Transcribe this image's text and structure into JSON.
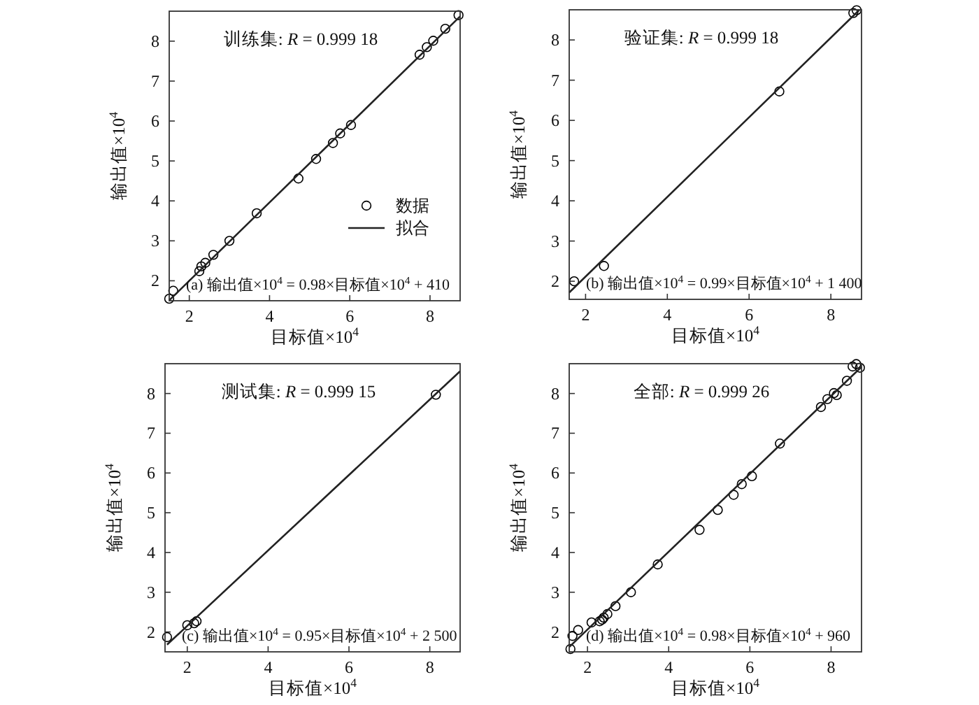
{
  "chart_data": [
    {
      "type": "scatter",
      "title": "训练集: *R* = 0.999 18",
      "xlabel": "目标值×10$^{4}$",
      "ylabel": "输出值×10$^{4}$",
      "annotations": [
        "(a) 输出值×10$^{4}$ = 0.98×目标值×10$^{4}$ + 410"
      ],
      "xlim": [
        1.5,
        8.75
      ],
      "ylim": [
        1.5,
        8.75
      ],
      "xticks": [
        2,
        4,
        6,
        8
      ],
      "yticks": [
        2,
        3,
        4,
        5,
        6,
        7,
        8
      ],
      "legend": "bottom right",
      "grid": false,
      "series": [
        {
          "name": "数据",
          "type": "scatter",
          "marker": "circle",
          "color": "#000000",
          "x": [
            1.5,
            1.6,
            2.25,
            2.3,
            2.4,
            2.6,
            3.0,
            3.68,
            4.72,
            5.16,
            5.58,
            5.76,
            6.03,
            7.74,
            7.92,
            8.08,
            8.38,
            8.71
          ],
          "values": [
            1.55,
            1.75,
            2.24,
            2.36,
            2.45,
            2.65,
            3.0,
            3.69,
            4.56,
            5.05,
            5.45,
            5.69,
            5.9,
            7.66,
            7.85,
            8.01,
            8.31,
            8.65
          ]
        },
        {
          "name": "拟合",
          "type": "line",
          "line_style": "solid",
          "color": "#222222",
          "x": [
            1.5,
            8.75
          ],
          "values": [
            1.51,
            8.62
          ]
        }
      ]
    },
    {
      "type": "scatter",
      "title": "验证集: *R* = 0.999 18",
      "xlabel": "目标值×10$^{4}$",
      "ylabel": "输出值×10$^{4}$",
      "annotations": [
        "(b) 输出值×10$^{4}$ = 0.99×目标值×10$^{4}$ + 1 400"
      ],
      "xlim": [
        1.6,
        8.75
      ],
      "ylim": [
        1.55,
        8.75
      ],
      "xticks": [
        2,
        4,
        6,
        8
      ],
      "yticks": [
        2,
        3,
        4,
        5,
        6,
        7,
        8
      ],
      "grid": false,
      "series": [
        {
          "type": "scatter",
          "marker": "circle",
          "color": "#000000",
          "x": [
            1.72,
            2.45,
            6.74,
            8.55,
            8.63
          ],
          "values": [
            2.0,
            2.38,
            6.72,
            8.67,
            8.74
          ]
        },
        {
          "type": "line",
          "line_style": "solid",
          "color": "#222222",
          "x": [
            1.6,
            8.7
          ],
          "values": [
            1.72,
            8.75
          ]
        }
      ]
    },
    {
      "type": "scatter",
      "title": "测试集: *R* = 0.999 15",
      "xlabel": "目标值×10$^{4}$",
      "ylabel": "输出值×10$^{4}$",
      "annotations": [
        "(c) 输出值×10$^{4}$ = 0.95×目标值×10$^{4}$ + 2 500"
      ],
      "xlim": [
        1.45,
        8.75
      ],
      "ylim": [
        1.5,
        8.75
      ],
      "xticks": [
        2,
        4,
        6,
        8
      ],
      "yticks": [
        2,
        3,
        4,
        5,
        6,
        7,
        8
      ],
      "grid": false,
      "series": [
        {
          "type": "scatter",
          "marker": "circle",
          "color": "#000000",
          "x": [
            1.5,
            2.0,
            2.17,
            2.23,
            8.15
          ],
          "values": [
            1.87,
            2.17,
            2.22,
            2.27,
            7.97
          ]
        },
        {
          "type": "line",
          "line_style": "solid",
          "color": "#222222",
          "x": [
            1.5,
            8.75
          ],
          "values": [
            1.68,
            8.56
          ]
        }
      ]
    },
    {
      "type": "scatter",
      "title": "全部: *R* = 0.999 26",
      "xlabel": "目标值×10$^{4}$",
      "ylabel": "输出值×10$^{4}$",
      "annotations": [
        "(d) 输出值×10$^{4}$ = 0.98×目标值×10$^{4}$ + 960"
      ],
      "xlim": [
        1.55,
        8.75
      ],
      "ylim": [
        1.5,
        8.75
      ],
      "xticks": [
        2,
        4,
        6,
        8
      ],
      "yticks": [
        2,
        3,
        4,
        5,
        6,
        7,
        8
      ],
      "grid": false,
      "series": [
        {
          "type": "scatter",
          "marker": "circle",
          "color": "#000000",
          "x": [
            1.58,
            1.63,
            1.77,
            2.1,
            2.3,
            2.36,
            2.4,
            2.49,
            2.69,
            3.07,
            3.73,
            4.76,
            5.21,
            5.6,
            5.8,
            6.05,
            6.74,
            7.75,
            7.91,
            8.07,
            8.14,
            8.39,
            8.53,
            8.62,
            8.71
          ],
          "values": [
            1.57,
            1.9,
            2.05,
            2.24,
            2.27,
            2.31,
            2.36,
            2.45,
            2.65,
            3.0,
            3.7,
            4.57,
            5.07,
            5.45,
            5.72,
            5.92,
            6.74,
            7.66,
            7.86,
            8.01,
            7.96,
            8.32,
            8.68,
            8.74,
            8.65
          ]
        },
        {
          "type": "line",
          "line_style": "solid",
          "color": "#222222",
          "x": [
            1.55,
            8.75
          ],
          "values": [
            1.62,
            8.67
          ]
        }
      ]
    }
  ]
}
